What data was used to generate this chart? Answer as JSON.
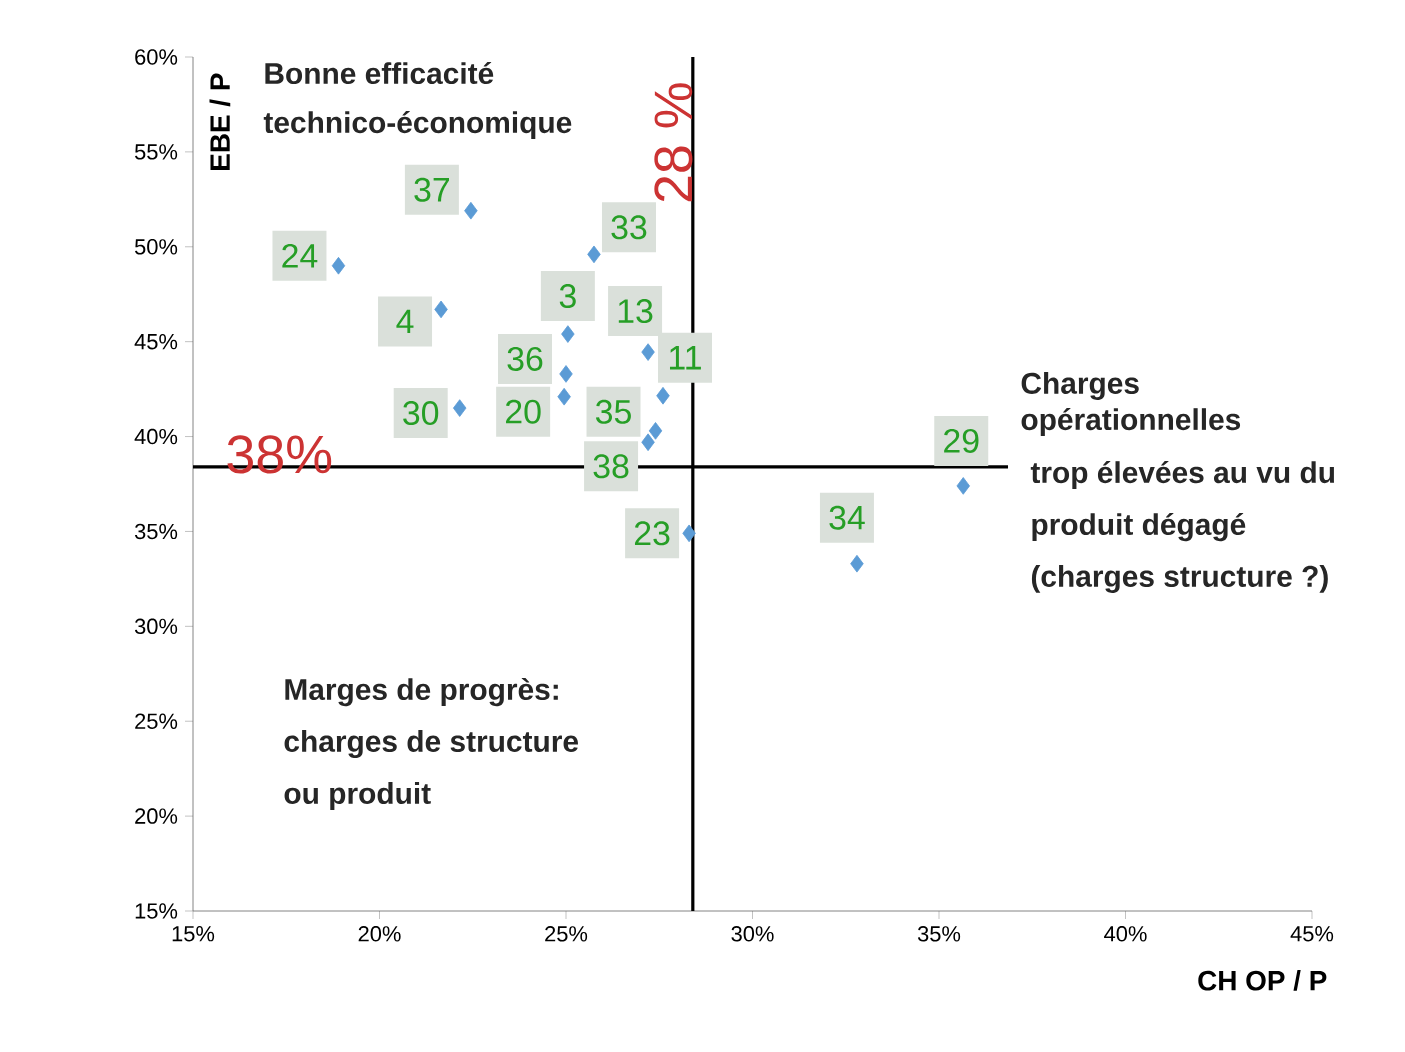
{
  "chart_data": {
    "type": "scatter",
    "xlabel": "CH OP / P",
    "ylabel": "EBE / P",
    "color": "#5b9bd5",
    "marker": "diamond",
    "grid": false,
    "x": [
      22.45,
      18.9,
      25.75,
      21.65,
      25.05,
      27.2,
      25.0,
      24.95,
      22.15,
      27.6,
      27.4,
      27.2,
      28.3,
      32.8,
      35.65
    ],
    "values": [
      51.9,
      49.0,
      49.6,
      46.7,
      45.4,
      44.45,
      43.3,
      42.1,
      41.5,
      42.15,
      40.3,
      39.7,
      34.9,
      33.3,
      37.4
    ],
    "xlim": [
      15,
      45
    ],
    "ylim": [
      15,
      60
    ],
    "xticks": [
      {
        "value": 15,
        "label": "15%"
      },
      {
        "value": 20,
        "label": "20%"
      },
      {
        "value": 25,
        "label": "25%"
      },
      {
        "value": 30,
        "label": "30%"
      },
      {
        "value": 35,
        "label": "35%"
      },
      {
        "value": 40,
        "label": "40%"
      },
      {
        "value": 45,
        "label": "45%"
      }
    ],
    "yticks": [
      {
        "value": 15,
        "label": "15%"
      },
      {
        "value": 20,
        "label": "20%"
      },
      {
        "value": 25,
        "label": "25%"
      },
      {
        "value": 30,
        "label": "30%"
      },
      {
        "value": 35,
        "label": "35%"
      },
      {
        "value": 40,
        "label": "40%"
      },
      {
        "value": 45,
        "label": "45%"
      },
      {
        "value": 50,
        "label": "50%"
      },
      {
        "value": 55,
        "label": "55%"
      },
      {
        "value": 60,
        "label": "60%"
      }
    ],
    "ref_lines": [
      {
        "axis": "y",
        "value": 38.4,
        "label": "38%",
        "color": "#000000"
      },
      {
        "axis": "x",
        "value": 28.4,
        "label": "28 %",
        "color": "#000000"
      }
    ],
    "annotations": [
      "Bonne efficacité",
      "technico-économique",
      "Charges",
      "opérationnelles",
      "trop élevées au vu du",
      "produit dégagé",
      "(charges structure ?)",
      "Marges de progrès:",
      "charges de structure",
      "ou produit",
      {
        "text": "37",
        "x": 22.45,
        "y": 51.9
      },
      {
        "text": "24",
        "x": 18.9,
        "y": 49.0
      },
      {
        "text": "33",
        "x": 25.75,
        "y": 49.6
      },
      {
        "text": "4",
        "x": 21.65,
        "y": 46.7
      },
      {
        "text": "3",
        "x": 25.05,
        "y": 45.4
      },
      {
        "text": "13",
        "x": 27.2,
        "y": 44.45
      },
      {
        "text": "36",
        "x": 25.0,
        "y": 43.3
      },
      {
        "text": "20",
        "x": 24.95,
        "y": 42.1
      },
      {
        "text": "30",
        "x": 22.15,
        "y": 41.5
      },
      {
        "text": "11",
        "x": 27.6,
        "y": 42.15
      },
      {
        "text": "35",
        "x": 27.4,
        "y": 40.3
      },
      {
        "text": "38",
        "x": 27.2,
        "y": 39.7
      },
      {
        "text": "23",
        "x": 28.3,
        "y": 34.9
      },
      {
        "text": "34",
        "x": 32.8,
        "y": 33.3
      },
      {
        "text": "29",
        "x": 35.65,
        "y": 37.4
      }
    ]
  }
}
